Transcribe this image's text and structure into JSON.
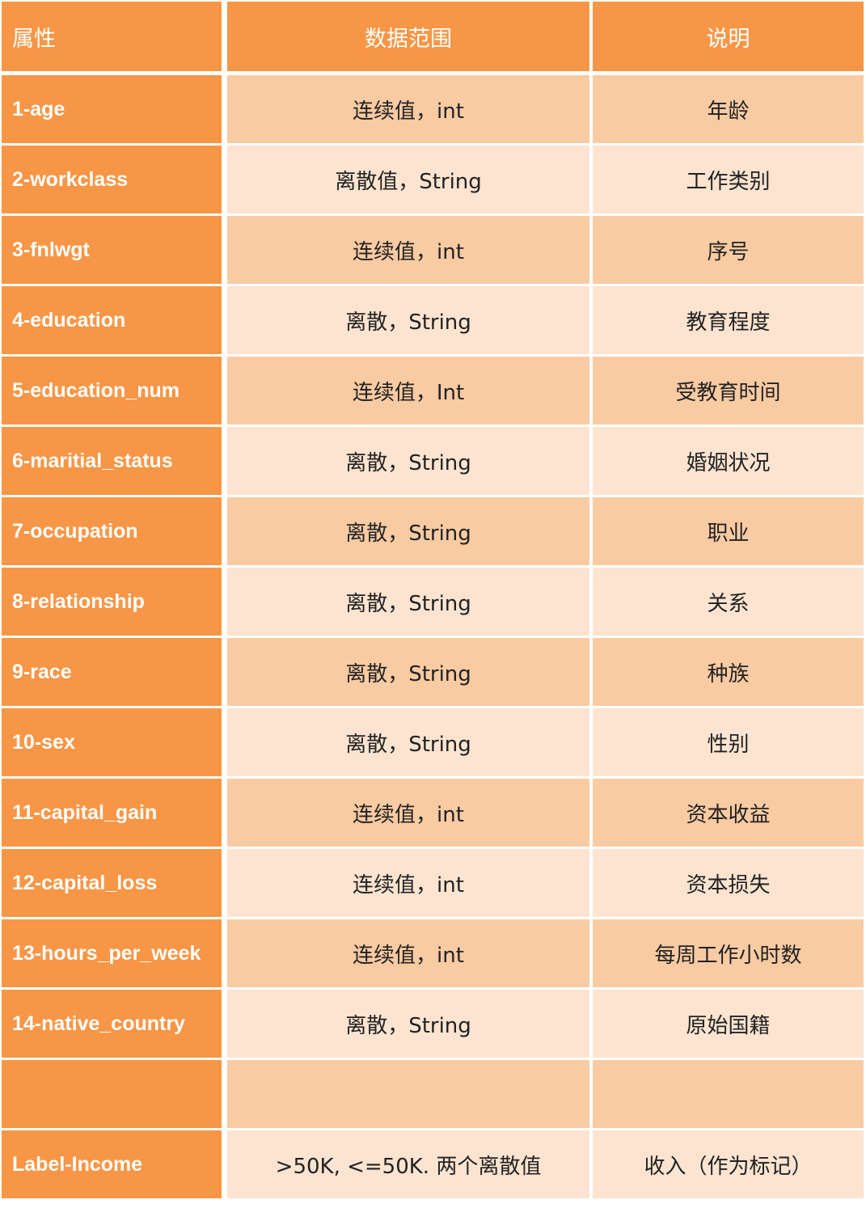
{
  "colors": {
    "header": "#F79646",
    "band_dark": "#F9CBA3",
    "band_light": "#FCE4D1"
  },
  "header": {
    "attribute": "属性",
    "range": "数据范围",
    "description": "说明"
  },
  "rows": [
    {
      "attribute": "1-age",
      "range": "连续值，int",
      "description": "年龄"
    },
    {
      "attribute": "2-workclass",
      "range": "离散值，String",
      "description": "工作类别"
    },
    {
      "attribute": "3-fnlwgt",
      "range": "连续值，int",
      "description": "序号"
    },
    {
      "attribute": "4-education",
      "range": "离散，String",
      "description": "教育程度"
    },
    {
      "attribute": "5-education_num",
      "range": "连续值，Int",
      "description": "受教育时间"
    },
    {
      "attribute": "6-maritial_status",
      "range": "离散，String",
      "description": "婚姻状况"
    },
    {
      "attribute": "7-occupation",
      "range": "离散，String",
      "description": "职业"
    },
    {
      "attribute": "8-relationship",
      "range": "离散，String",
      "description": "关系"
    },
    {
      "attribute": "9-race",
      "range": "离散，String",
      "description": "种族"
    },
    {
      "attribute": "10-sex",
      "range": "离散，String",
      "description": "性别"
    },
    {
      "attribute": "11-capital_gain",
      "range": "连续值，int",
      "description": "资本收益"
    },
    {
      "attribute": "12-capital_loss",
      "range": "连续值，int",
      "description": "资本损失"
    },
    {
      "attribute": "13-hours_per_week",
      "range": "连续值，int",
      "description": "每周工作小时数"
    },
    {
      "attribute": "14-native_country",
      "range": "离散，String",
      "description": "原始国籍"
    },
    {
      "attribute": "",
      "range": "",
      "description": ""
    },
    {
      "attribute": "Label-Income",
      "range": ">50K, <=50K. 两个离散值",
      "description": "收入（作为标记）"
    }
  ]
}
